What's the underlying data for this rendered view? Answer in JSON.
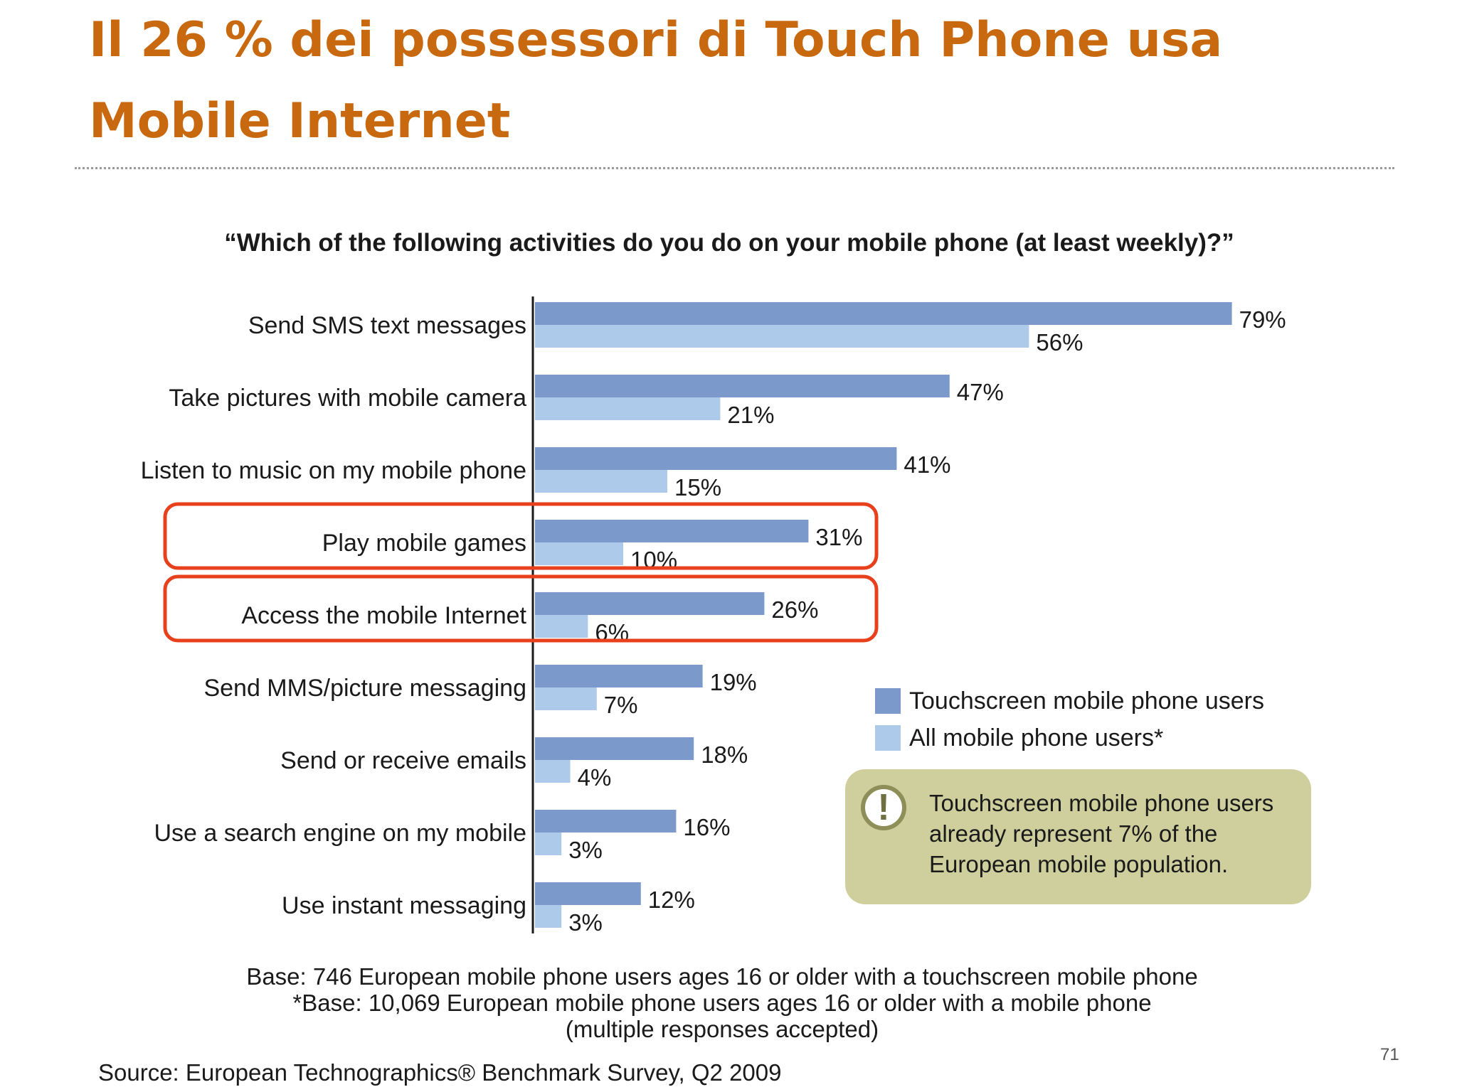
{
  "slide": {
    "title": "Il 26 % dei possessori di Touch Phone usa Mobile Internet",
    "page_number": "71"
  },
  "chart_data": {
    "type": "bar",
    "orientation": "horizontal",
    "title": "“Which of the following activities do you do on your mobile phone (at least weekly)?”",
    "categories": [
      "Send SMS text messages",
      "Take pictures with mobile camera",
      "Listen to music on my mobile phone",
      "Play mobile games",
      "Access the mobile Internet",
      "Send MMS/picture messaging",
      "Send or receive emails",
      "Use a search engine on my mobile",
      "Use instant messaging"
    ],
    "series": [
      {
        "name": "Touchscreen mobile phone users",
        "color": "#7B9ACB",
        "values": [
          79,
          47,
          41,
          31,
          26,
          19,
          18,
          16,
          12
        ]
      },
      {
        "name": "All mobile phone users*",
        "color": "#AECAEA",
        "values": [
          56,
          21,
          15,
          10,
          6,
          7,
          4,
          3,
          3
        ]
      }
    ],
    "value_suffix": "%",
    "xlim": [
      0,
      100
    ],
    "grid": false,
    "legend_position": "right",
    "highlighted_categories": [
      "Play mobile games",
      "Access the mobile Internet"
    ],
    "highlight_color": "#E8401C"
  },
  "note": {
    "icon": "exclamation-icon",
    "text": "Touchscreen mobile phone users already represent 7% of the European mobile population."
  },
  "base": {
    "line1": "Base: 746 European mobile phone users ages 16 or older with a touchscreen mobile phone",
    "line2": "*Base: 10,069 European mobile phone users ages 16 or older with a mobile phone",
    "line3": "(multiple responses accepted)"
  },
  "source": "Source: European Technographics® Benchmark Survey, Q2 2009"
}
